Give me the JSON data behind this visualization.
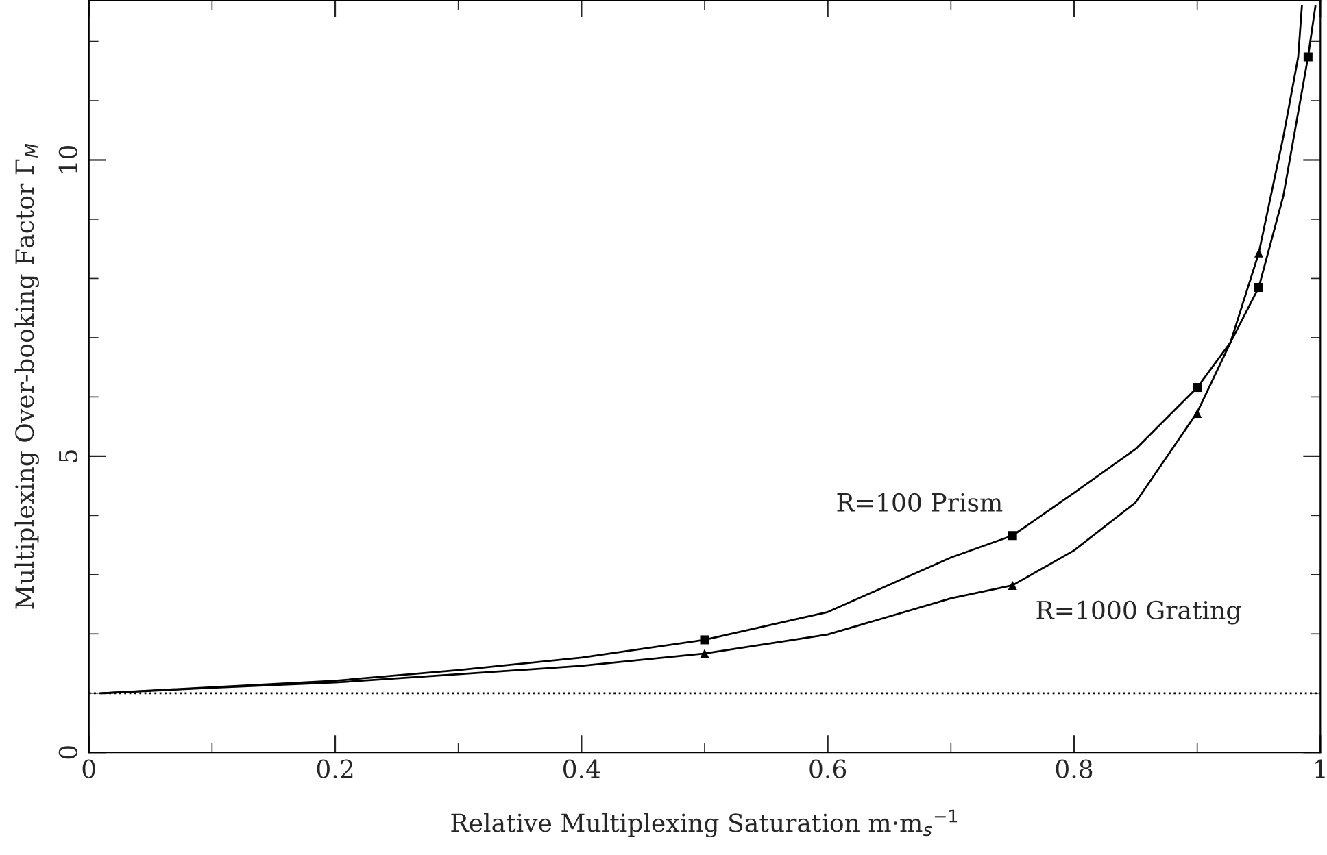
{
  "chart_data": {
    "type": "line",
    "xlabel": "Relative Multiplexing Saturation m·m$_{s}$$^{−1}$",
    "ylabel": "Multiplexing Over-booking Factor Γ$_{M}$",
    "xlim": [
      0,
      1
    ],
    "ylim": [
      0,
      12.7
    ],
    "xticks": [
      0,
      0.2,
      0.4,
      0.6,
      0.8,
      1
    ],
    "yticks": [
      0,
      5,
      10
    ],
    "grid": false,
    "legend": false,
    "ref_lines": [
      {
        "axis": "y",
        "value": 1,
        "color": "#000000",
        "line_style": "dotted"
      }
    ],
    "series": [
      {
        "name": "R=100 Prism",
        "color": "#000000",
        "marker": "none",
        "line_style": "solid",
        "x": [
          0.01,
          0.1,
          0.2,
          0.3,
          0.4,
          0.5,
          0.6,
          0.7,
          0.75,
          0.8,
          0.85,
          0.9,
          0.927,
          0.95,
          0.97,
          0.99,
          0.996
        ],
        "values": [
          1.0,
          1.1,
          1.21,
          1.39,
          1.6,
          1.9,
          2.37,
          3.29,
          3.66,
          4.38,
          5.12,
          6.16,
          6.92,
          7.85,
          9.4,
          11.74,
          12.6
        ]
      },
      {
        "name": "R=1000 Grating",
        "color": "#000000",
        "marker": "none",
        "line_style": "solid",
        "x": [
          0.01,
          0.1,
          0.2,
          0.3,
          0.4,
          0.5,
          0.6,
          0.7,
          0.75,
          0.8,
          0.85,
          0.9,
          0.927,
          0.95,
          0.97,
          0.982,
          0.985
        ],
        "values": [
          1.0,
          1.09,
          1.18,
          1.32,
          1.46,
          1.67,
          1.99,
          2.6,
          2.82,
          3.41,
          4.22,
          5.74,
          6.92,
          8.43,
          10.4,
          11.74,
          12.6
        ]
      },
      {
        "type": "scatter",
        "color": "#000000",
        "marker": "square",
        "x": [
          0.5,
          0.75,
          0.9,
          0.95,
          0.99
        ],
        "values": [
          1.9,
          3.66,
          6.16,
          7.85,
          11.74
        ]
      },
      {
        "type": "scatter",
        "color": "#000000",
        "marker": "triangle",
        "x": [
          0.5,
          0.75,
          0.9,
          0.95
        ],
        "values": [
          1.67,
          2.82,
          5.72,
          8.43
        ]
      }
    ]
  }
}
